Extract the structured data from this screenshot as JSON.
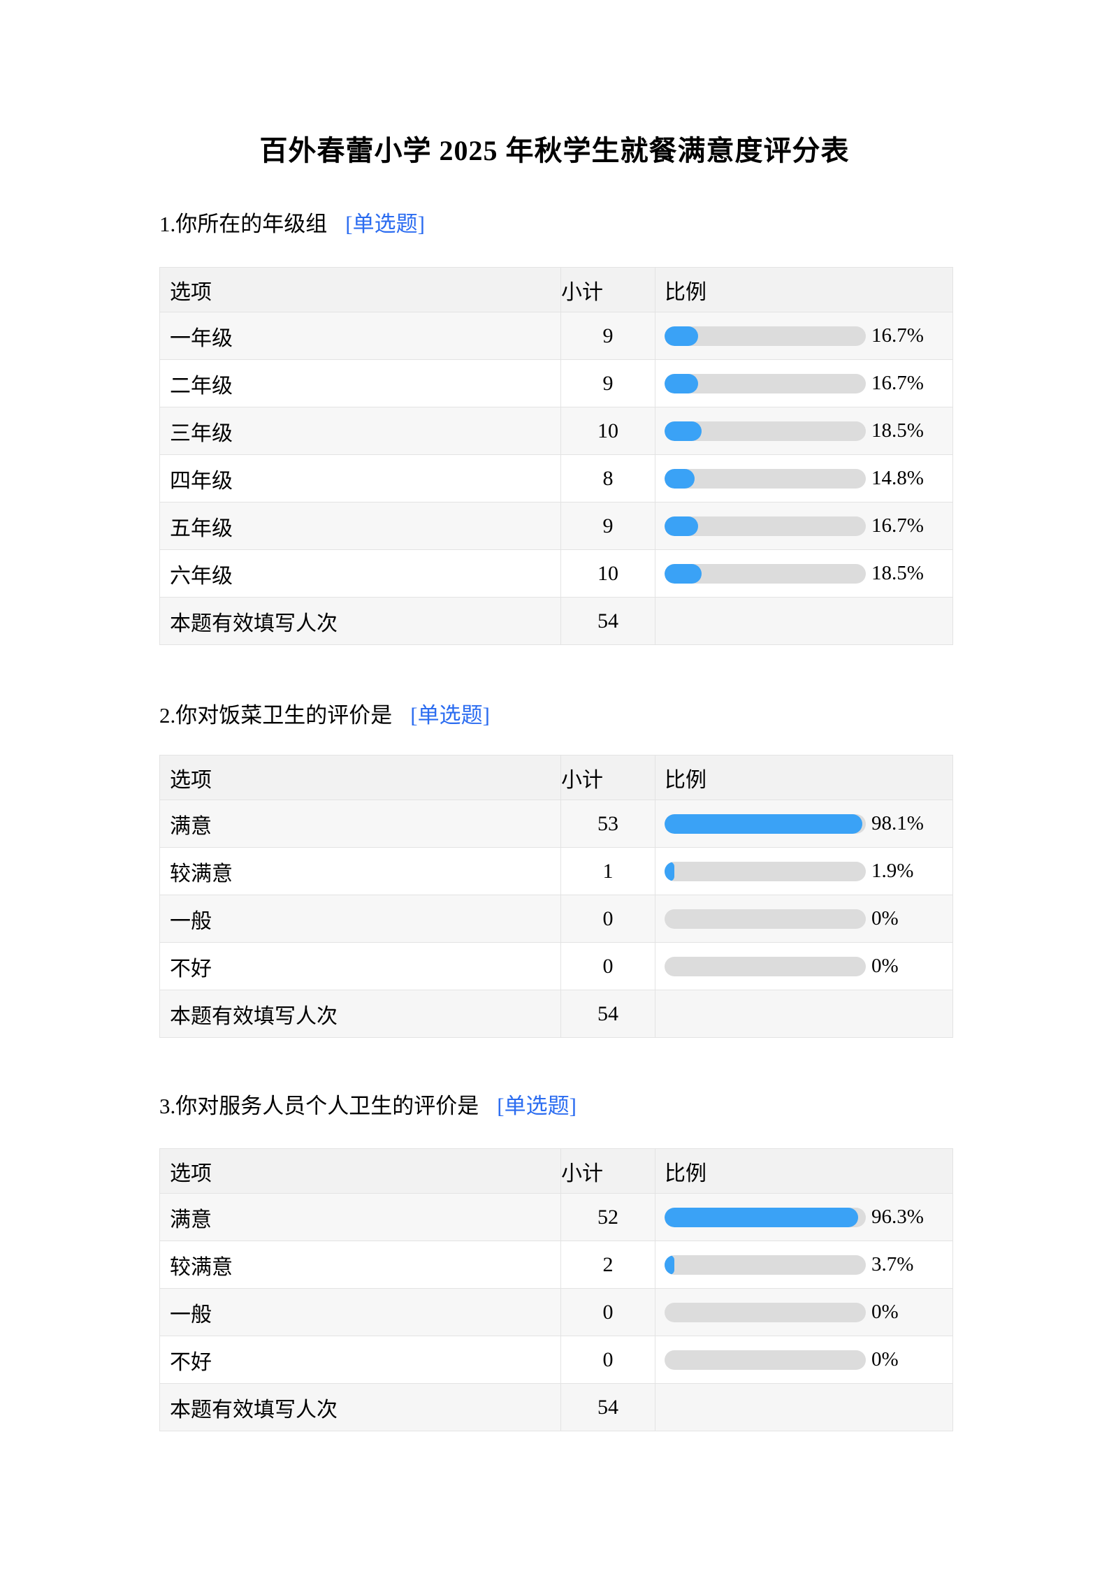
{
  "page": {
    "title": "百外春蕾小学 2025 年秋学生就餐满意度评分表"
  },
  "table_headers": {
    "option": "选项",
    "count": "小计",
    "ratio": "比例"
  },
  "colors": {
    "bar_fill": "#3aa2f6",
    "bar_track": "#dcdcdc",
    "link_blue": "#2b6cf0",
    "header_bg": "#f2f2f2",
    "alt_row_bg": "#f7f7f7",
    "border": "#e3e3e3"
  },
  "questions": [
    {
      "title": "1.你所在的年级组",
      "tag": "[单选题]",
      "rows": [
        {
          "label": "一年级",
          "count": "9",
          "pct": 16.7,
          "pct_label": "16.7%"
        },
        {
          "label": "二年级",
          "count": "9",
          "pct": 16.7,
          "pct_label": "16.7%"
        },
        {
          "label": "三年级",
          "count": "10",
          "pct": 18.5,
          "pct_label": "18.5%"
        },
        {
          "label": "四年级",
          "count": "8",
          "pct": 14.8,
          "pct_label": "14.8%"
        },
        {
          "label": "五年级",
          "count": "9",
          "pct": 16.7,
          "pct_label": "16.7%"
        },
        {
          "label": "六年级",
          "count": "10",
          "pct": 18.5,
          "pct_label": "18.5%"
        }
      ],
      "summary": {
        "label": "本题有效填写人次",
        "total": "54"
      }
    },
    {
      "title": "2.你对饭菜卫生的评价是",
      "tag": "[单选题]",
      "rows": [
        {
          "label": "满意",
          "count": "53",
          "pct": 98.1,
          "pct_label": "98.1%"
        },
        {
          "label": "较满意",
          "count": "1",
          "pct": 1.9,
          "pct_label": "1.9%"
        },
        {
          "label": "一般",
          "count": "0",
          "pct": 0,
          "pct_label": "0%"
        },
        {
          "label": "不好",
          "count": "0",
          "pct": 0,
          "pct_label": "0%"
        }
      ],
      "summary": {
        "label": "本题有效填写人次",
        "total": "54"
      }
    },
    {
      "title": "3.你对服务人员个人卫生的评价是",
      "tag": "[单选题]",
      "rows": [
        {
          "label": "满意",
          "count": "52",
          "pct": 96.3,
          "pct_label": "96.3%"
        },
        {
          "label": "较满意",
          "count": "2",
          "pct": 3.7,
          "pct_label": "3.7%"
        },
        {
          "label": "一般",
          "count": "0",
          "pct": 0,
          "pct_label": "0%"
        },
        {
          "label": "不好",
          "count": "0",
          "pct": 0,
          "pct_label": "0%"
        }
      ],
      "summary": {
        "label": "本题有效填写人次",
        "total": "54"
      }
    }
  ]
}
